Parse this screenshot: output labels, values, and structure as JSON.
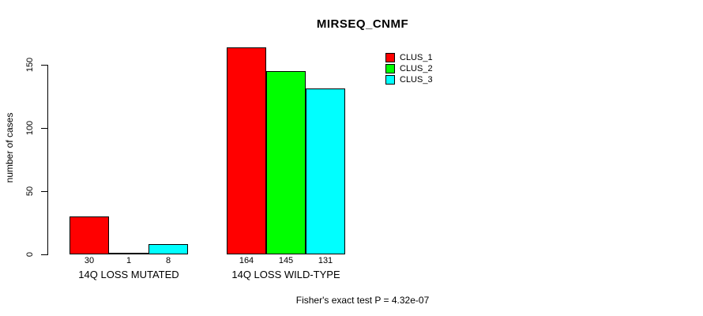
{
  "chart_data": {
    "type": "bar",
    "title": "MIRSEQ_CNMF",
    "ylabel": "number of cases",
    "xlabel": "",
    "categories": [
      "14Q LOSS MUTATED",
      "14Q LOSS WILD-TYPE"
    ],
    "series": [
      {
        "name": "CLUS_1",
        "color": "#ff0000",
        "values": [
          30,
          164
        ]
      },
      {
        "name": "CLUS_2",
        "color": "#00ff00",
        "values": [
          1,
          145
        ]
      },
      {
        "name": "CLUS_3",
        "color": "#00ffff",
        "values": [
          8,
          131
        ]
      }
    ],
    "bar_value_labels": [
      [
        30,
        1,
        8
      ],
      [
        164,
        145,
        131
      ]
    ],
    "yticks": [
      0,
      50,
      100,
      150
    ],
    "ylim": [
      0,
      165
    ],
    "grid": false,
    "legend_position": "top-right",
    "bar_border_color": "#000000",
    "annotation": "Fisher's exact test P = 4.32e-07"
  }
}
